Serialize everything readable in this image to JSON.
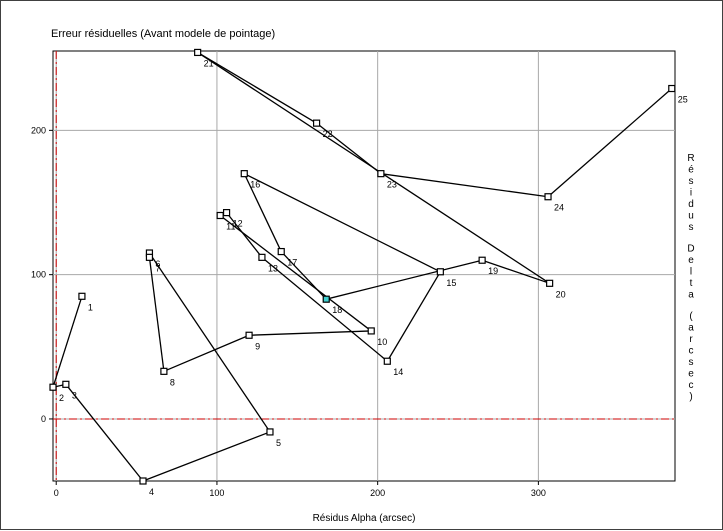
{
  "chart_data": {
    "type": "line",
    "title": "Erreur résiduelles (Avant modele de pointage)",
    "xlabel": "Résidus Alpha (arcsec)",
    "ylabel": "Résidus Delta (arcsec)",
    "xlim": [
      -2,
      385
    ],
    "ylim": [
      -43,
      255
    ],
    "xticks": [
      0,
      100,
      200,
      300
    ],
    "yticks": [
      0,
      100,
      200
    ],
    "grid": true,
    "reference_lines": {
      "x": 0,
      "y": 0,
      "color": "#cc0000",
      "style": "dash-dot"
    },
    "line_color": "#000000",
    "marker": "open-square",
    "highlight_color": "#40d0d0",
    "points": [
      {
        "label": "1",
        "x": 16,
        "y": 85
      },
      {
        "label": "2",
        "x": -2,
        "y": 22
      },
      {
        "label": "3",
        "x": 6,
        "y": 24
      },
      {
        "label": "4",
        "x": 54,
        "y": -43
      },
      {
        "label": "5",
        "x": 133,
        "y": -9
      },
      {
        "label": "6",
        "x": 58,
        "y": 115
      },
      {
        "label": "7",
        "x": 58,
        "y": 112
      },
      {
        "label": "8",
        "x": 67,
        "y": 33
      },
      {
        "label": "9",
        "x": 120,
        "y": 58
      },
      {
        "label": "10",
        "x": 196,
        "y": 61
      },
      {
        "label": "11",
        "x": 102,
        "y": 141
      },
      {
        "label": "12",
        "x": 106,
        "y": 143
      },
      {
        "label": "13",
        "x": 128,
        "y": 112
      },
      {
        "label": "14",
        "x": 206,
        "y": 40
      },
      {
        "label": "15",
        "x": 239,
        "y": 102
      },
      {
        "label": "16",
        "x": 117,
        "y": 170
      },
      {
        "label": "17",
        "x": 140,
        "y": 116
      },
      {
        "label": "18",
        "x": 168,
        "y": 83
      },
      {
        "label": "19",
        "x": 265,
        "y": 110
      },
      {
        "label": "20",
        "x": 307,
        "y": 94
      },
      {
        "label": "21",
        "x": 88,
        "y": 254
      },
      {
        "label": "22",
        "x": 162,
        "y": 205
      },
      {
        "label": "23",
        "x": 202,
        "y": 170
      },
      {
        "label": "24",
        "x": 306,
        "y": 154
      },
      {
        "label": "25",
        "x": 383,
        "y": 229
      }
    ],
    "path_order": [
      "1",
      "2",
      "3",
      "4",
      "5",
      "6",
      "7",
      "8",
      "9",
      "10",
      "11",
      "12",
      "13",
      "14",
      "15",
      "16",
      "17",
      "18",
      "19",
      "20",
      "21",
      "22",
      "23",
      "24",
      "25"
    ],
    "highlighted_point": "18"
  }
}
